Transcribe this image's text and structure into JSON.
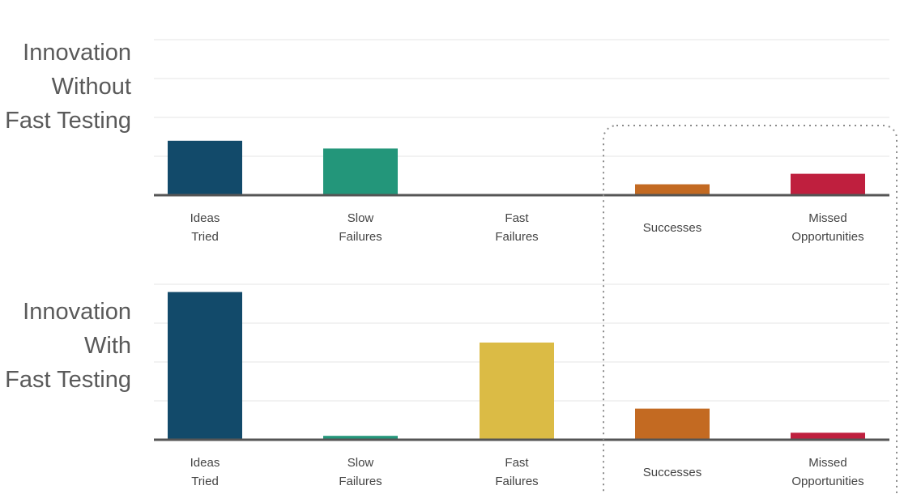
{
  "row_titles": [
    {
      "lines": [
        "Innovation",
        "Without",
        "Fast Testing"
      ]
    },
    {
      "lines": [
        "Innovation",
        "With",
        "Fast Testing"
      ]
    }
  ],
  "colors": {
    "ideas_tried": "#124a6a",
    "slow_failures": "#23967a",
    "fast_failures": "#dbbb45",
    "successes": "#c36a22",
    "missed_opportunities": "#bf1f3e",
    "gridline": "#ededed",
    "baseline": "#555555",
    "highlight_box": "#8a8a8a"
  },
  "highlighted_categories": [
    "Successes",
    "Missed Opportunities"
  ],
  "chart_data": [
    {
      "type": "bar",
      "title": "Innovation Without Fast Testing",
      "categories": [
        {
          "lines": [
            "Ideas",
            "Tried"
          ]
        },
        {
          "lines": [
            "Slow",
            "Failures"
          ]
        },
        {
          "lines": [
            "Fast",
            "Failures"
          ]
        },
        {
          "lines": [
            "Successes"
          ]
        },
        {
          "lines": [
            "Missed",
            "Opportunities"
          ]
        }
      ],
      "values": [
        1.4,
        1.2,
        0,
        0.28,
        0.55
      ],
      "ylim": [
        0,
        4.8
      ],
      "grid": true,
      "gridlines": [
        1,
        2,
        3,
        4
      ],
      "xlabel": "",
      "ylabel": ""
    },
    {
      "type": "bar",
      "title": "Innovation With Fast Testing",
      "categories": [
        {
          "lines": [
            "Ideas",
            "Tried"
          ]
        },
        {
          "lines": [
            "Slow",
            "Failures"
          ]
        },
        {
          "lines": [
            "Fast",
            "Failures"
          ]
        },
        {
          "lines": [
            "Successes"
          ]
        },
        {
          "lines": [
            "Missed",
            "Opportunities"
          ]
        }
      ],
      "values": [
        3.8,
        0.1,
        2.5,
        0.8,
        0.18
      ],
      "ylim": [
        0,
        4.8
      ],
      "grid": true,
      "gridlines": [
        1,
        2,
        3,
        4
      ],
      "xlabel": "",
      "ylabel": ""
    }
  ]
}
